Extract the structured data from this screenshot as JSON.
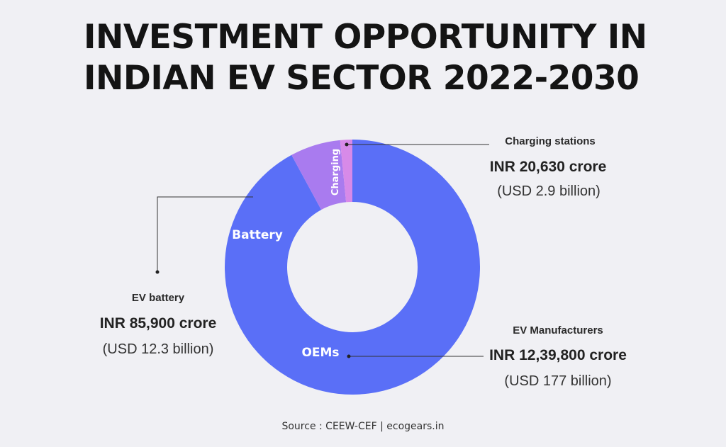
{
  "title": {
    "line1": "INVESTMENT OPPORTUNITY IN",
    "line2": "INDIAN EV SECTOR 2022-2030"
  },
  "chart_data": {
    "type": "pie",
    "donut": true,
    "title": "INVESTMENT OPPORTUNITY IN INDIAN EV SECTOR 2022-2030",
    "unit": "INR crore",
    "categories": [
      "OEMs",
      "Battery",
      "Charging"
    ],
    "values": [
      1239800,
      85900,
      20630
    ],
    "colors": [
      "#5a6ff7",
      "#a97bef",
      "#d78ae8"
    ],
    "labels": [
      {
        "slice": "OEMs",
        "name": "EV Manufacturers",
        "inr": "INR 12,39,800 crore",
        "usd": "(USD 177 billion)"
      },
      {
        "slice": "Battery",
        "name": "EV battery",
        "inr": "INR 85,900 crore",
        "usd": "(USD 12.3 billion)"
      },
      {
        "slice": "Charging",
        "name": "Charging stations",
        "inr": "INR 20,630 crore",
        "usd": "(USD 2.9 billion)"
      }
    ]
  },
  "source": "Source : CEEW-CEF | ecogears.in"
}
